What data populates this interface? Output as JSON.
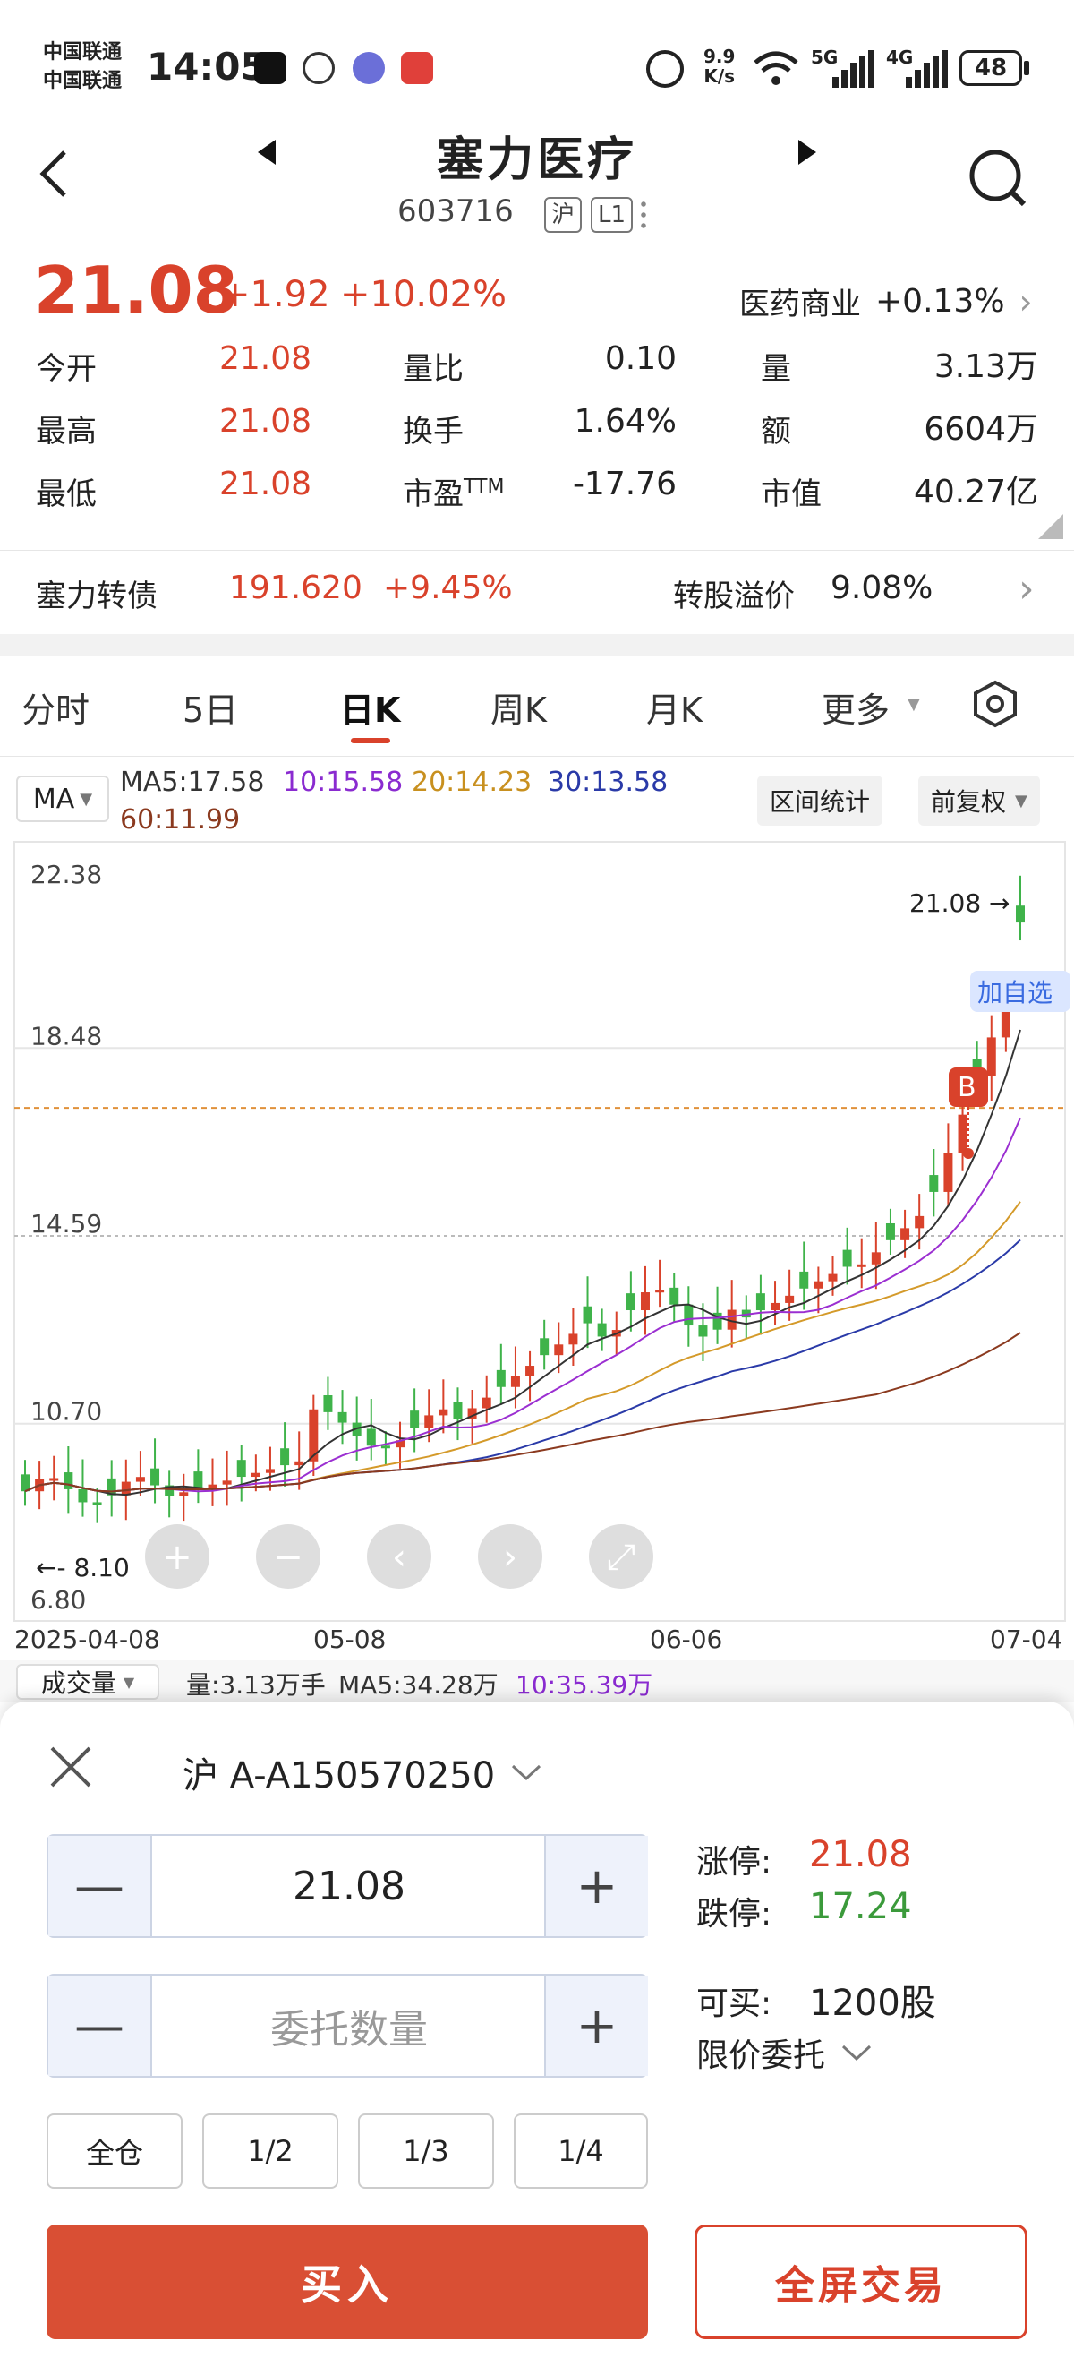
{
  "status_bar": {
    "carrier1": "中国联通",
    "carrier2": "中国联通",
    "time": "14:05",
    "net_speed_top": "9.9",
    "net_speed_bottom": "K/s",
    "signal1": "5G",
    "signal2": "4G",
    "battery": "48"
  },
  "header": {
    "title": "塞力医疗",
    "code": "603716",
    "market_tag": "沪",
    "level_tag": "L1"
  },
  "quote": {
    "price": "21.08",
    "change": "+1.92",
    "change_pct": "+10.02%",
    "sector": "医药商业",
    "sector_pct": "+0.13%",
    "rows": [
      [
        {
          "label": "今开",
          "value": "21.08",
          "color": "red"
        },
        {
          "label": "量比",
          "value": "0.10",
          "color": "black"
        },
        {
          "label": "量",
          "value": "3.13万",
          "color": "black"
        }
      ],
      [
        {
          "label": "最高",
          "value": "21.08",
          "color": "red"
        },
        {
          "label": "换手",
          "value": "1.64%",
          "color": "black"
        },
        {
          "label": "额",
          "value": "6604万",
          "color": "black"
        }
      ],
      [
        {
          "label": "最低",
          "value": "21.08",
          "color": "red"
        },
        {
          "label": "市盈TTM",
          "value": "-17.76",
          "color": "black"
        },
        {
          "label": "市值",
          "value": "40.27亿",
          "color": "black"
        }
      ]
    ]
  },
  "bond": {
    "name": "塞力转债",
    "price": "191.620",
    "pct": "+9.45%",
    "premium_label": "转股溢价",
    "premium": "9.08%"
  },
  "tabs": [
    "分时",
    "5日",
    "日K",
    "周K",
    "月K",
    "更多"
  ],
  "active_tab": "日K",
  "legend": {
    "indicator": "MA",
    "ma5": "MA5:17.58",
    "ma10": "10:15.58",
    "ma20": "20:14.23",
    "ma30": "30:13.58",
    "ma60": "60:11.99",
    "range_stat": "区间统计",
    "adjust": "前复权"
  },
  "chart_data": {
    "type": "candlestick",
    "y_ticks": [
      "22.38",
      "18.48",
      "14.59",
      "10.70",
      "6.80"
    ],
    "x_ticks": [
      "2025-04-08",
      "05-08",
      "06-06",
      "07-04"
    ],
    "last_price_label": "21.08",
    "low_label": "8.10",
    "buy_marker": "B",
    "add_watch": "加自选",
    "colors": {
      "up": "#d9422b",
      "down": "#3fb34a",
      "ma5": "#333333",
      "ma10": "#9b2fd1",
      "ma20": "#d49a2a",
      "ma30": "#2a3aa8",
      "ma60": "#8b3a1f"
    }
  },
  "volume_bar": {
    "label": "成交量",
    "vol": "量:3.13万手",
    "ma5": "MA5:34.28万",
    "ma10": "10:35.39万"
  },
  "order": {
    "account": "沪 A-A150570250",
    "price": "21.08",
    "qty_placeholder": "委托数量",
    "limit_up_label": "涨停:",
    "limit_up": "21.08",
    "limit_down_label": "跌停:",
    "limit_down": "17.24",
    "can_buy_label": "可买:",
    "can_buy": "1200股",
    "order_type": "限价委托",
    "ratios": [
      "全仓",
      "1/2",
      "1/3",
      "1/4"
    ],
    "buy": "买入",
    "fullscreen": "全屏交易"
  }
}
